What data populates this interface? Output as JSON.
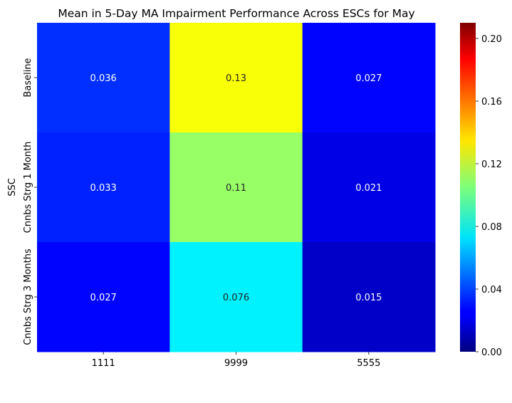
{
  "chart_data": {
    "type": "heatmap",
    "title": "Mean in 5-Day MA Impairment Performance Across ESCs for May",
    "xlabel": "",
    "ylabel": "SSC",
    "x_categories": [
      "1111",
      "9999",
      "5555"
    ],
    "y_categories": [
      "Baseline",
      "Cnnbs Strg 1 Month",
      "Cnnbs Strg 3 Months"
    ],
    "values": [
      [
        0.036,
        0.13,
        0.027
      ],
      [
        0.033,
        0.11,
        0.021
      ],
      [
        0.027,
        0.076,
        0.015
      ]
    ],
    "value_labels": [
      [
        "0.036",
        "0.13",
        "0.027"
      ],
      [
        "0.033",
        "0.11",
        "0.021"
      ],
      [
        "0.027",
        "0.076",
        "0.015"
      ]
    ],
    "colormap": "jet",
    "colorbar": {
      "range": [
        0,
        0.21
      ],
      "ticks": [
        0.0,
        0.04,
        0.08,
        0.12,
        0.16,
        0.2
      ],
      "tick_labels": [
        "0.00",
        "0.04",
        "0.08",
        "0.12",
        "0.16",
        "0.20"
      ]
    }
  }
}
